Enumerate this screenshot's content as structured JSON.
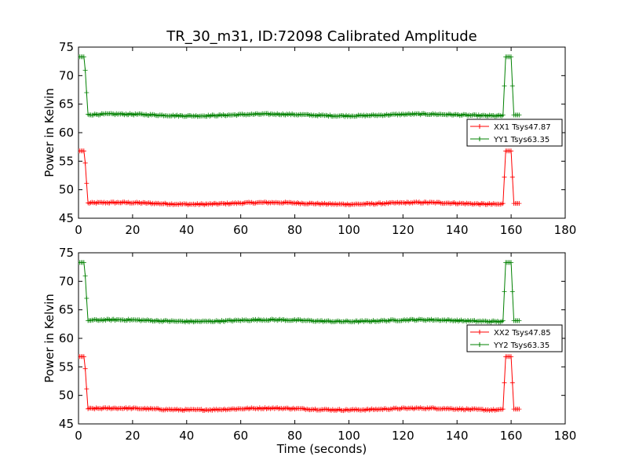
{
  "chart_data": [
    {
      "type": "line",
      "title": "TR_30_m31, ID:72098 Calibrated Amplitude",
      "xlabel": "",
      "ylabel": "Power in Kelvin",
      "xlim": [
        0,
        180
      ],
      "ylim": [
        45,
        75
      ],
      "xticks": [
        0,
        20,
        40,
        60,
        80,
        100,
        120,
        140,
        160,
        180
      ],
      "yticks": [
        45,
        50,
        55,
        60,
        65,
        70,
        75
      ],
      "legend_position": "right",
      "series": [
        {
          "name": "XX1 Tsys47.87",
          "color": "#ff0000",
          "base": 47.6,
          "high": 56.8,
          "low_value": 47.6
        },
        {
          "name": "YY1 Tsys63.35",
          "color": "#008000",
          "base": 63.1,
          "high": 73.3,
          "low_value": 63.1
        }
      ]
    },
    {
      "type": "line",
      "title": "",
      "xlabel": "Time (seconds)",
      "ylabel": "Power in Kelvin",
      "xlim": [
        0,
        180
      ],
      "ylim": [
        45,
        75
      ],
      "xticks": [
        0,
        20,
        40,
        60,
        80,
        100,
        120,
        140,
        160,
        180
      ],
      "yticks": [
        45,
        50,
        55,
        60,
        65,
        70,
        75
      ],
      "legend_position": "right",
      "series": [
        {
          "name": "XX2 Tsys47.85",
          "color": "#ff0000",
          "base": 47.6,
          "high": 56.8,
          "low_value": 47.6
        },
        {
          "name": "YY2 Tsys63.35",
          "color": "#008000",
          "base": 63.1,
          "high": 73.3,
          "low_value": 63.1
        }
      ]
    }
  ]
}
